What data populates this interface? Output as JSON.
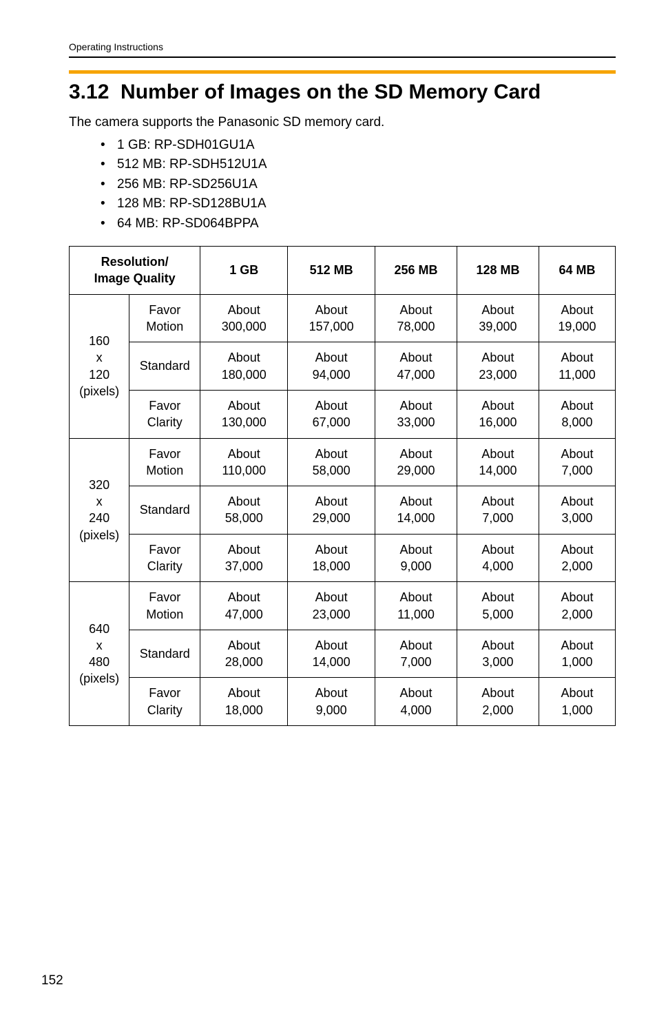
{
  "running_head": "Operating Instructions",
  "section_title": "3.12  Number of Images on the SD Memory Card",
  "intro": "The camera supports the Panasonic SD memory card.",
  "cards": [
    "1 GB: RP-SDH01GU1A",
    "512 MB: RP-SDH512U1A",
    "256 MB: RP-SD256U1A",
    "128 MB: RP-SD128BU1A",
    "64 MB: RP-SD064BPPA"
  ],
  "table": {
    "header": {
      "res_iq": "Resolution/\nImage Quality",
      "c1": "1 GB",
      "c2": "512 MB",
      "c3": "256 MB",
      "c4": "128 MB",
      "c5": "64 MB"
    },
    "colors": {
      "accent": "#f6a400",
      "rule": "#000000",
      "border": "#000000",
      "text": "#000000",
      "bg": "#ffffff"
    },
    "groups": [
      {
        "res": "160\nx\n120\n(pixels)",
        "rows": [
          {
            "iq": "Favor\nMotion",
            "v": [
              "About\n300,000",
              "About\n157,000",
              "About\n78,000",
              "About\n39,000",
              "About\n19,000"
            ]
          },
          {
            "iq": "Standard",
            "v": [
              "About\n180,000",
              "About\n94,000",
              "About\n47,000",
              "About\n23,000",
              "About\n11,000"
            ]
          },
          {
            "iq": "Favor\nClarity",
            "v": [
              "About\n130,000",
              "About\n67,000",
              "About\n33,000",
              "About\n16,000",
              "About\n8,000"
            ]
          }
        ]
      },
      {
        "res": "320\nx\n240\n(pixels)",
        "rows": [
          {
            "iq": "Favor\nMotion",
            "v": [
              "About\n110,000",
              "About\n58,000",
              "About\n29,000",
              "About\n14,000",
              "About\n7,000"
            ]
          },
          {
            "iq": "Standard",
            "v": [
              "About\n58,000",
              "About\n29,000",
              "About\n14,000",
              "About\n7,000",
              "About\n3,000"
            ]
          },
          {
            "iq": "Favor\nClarity",
            "v": [
              "About\n37,000",
              "About\n18,000",
              "About\n9,000",
              "About\n4,000",
              "About\n2,000"
            ]
          }
        ]
      },
      {
        "res": "640\nx\n480\n(pixels)",
        "rows": [
          {
            "iq": "Favor\nMotion",
            "v": [
              "About\n47,000",
              "About\n23,000",
              "About\n11,000",
              "About\n5,000",
              "About\n2,000"
            ]
          },
          {
            "iq": "Standard",
            "v": [
              "About\n28,000",
              "About\n14,000",
              "About\n7,000",
              "About\n3,000",
              "About\n1,000"
            ]
          },
          {
            "iq": "Favor\nClarity",
            "v": [
              "About\n18,000",
              "About\n9,000",
              "About\n4,000",
              "About\n2,000",
              "About\n1,000"
            ]
          }
        ]
      }
    ]
  },
  "page_number": "152"
}
